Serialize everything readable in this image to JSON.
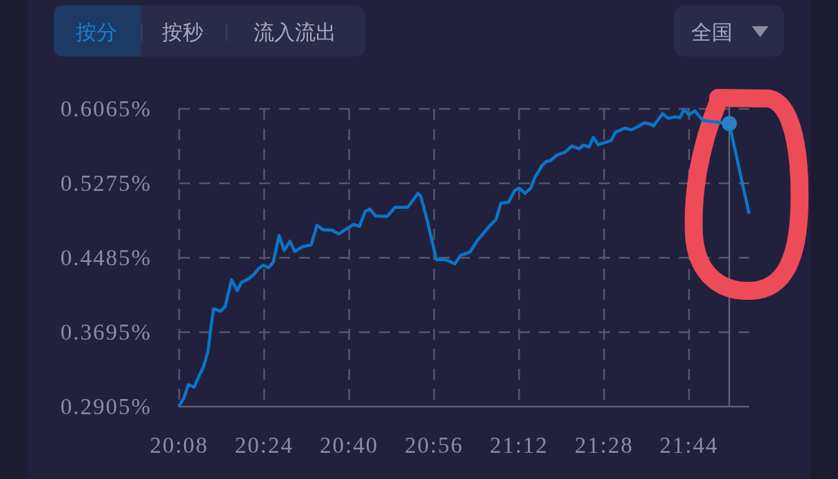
{
  "chart_data": {
    "type": "line",
    "annotations": [
      "按分",
      "按秒",
      "流入流出",
      "全国"
    ],
    "x": [
      20.1333,
      20.1478,
      20.1622,
      20.1803,
      20.1982,
      20.209,
      20.2235,
      20.2343,
      20.2415,
      20.263,
      20.2775,
      20.2977,
      20.3157,
      20.328,
      20.3495,
      20.3675,
      20.382,
      20.3965,
      20.4145,
      20.4288,
      20.4468,
      20.4627,
      20.4808,
      20.4965,
      20.5188,
      20.5478,
      20.5658,
      20.5837,
      20.6127,
      20.6343,
      20.6593,
      20.681,
      20.6992,
      20.7172,
      20.7317,
      20.7495,
      20.7857,
      20.8108,
      20.8505,
      20.883,
      20.8917,
      20.9117,
      20.9405,
      20.9695,
      20.9982,
      21.0162,
      21.0452,
      21.0702,
      21.1063,
      21.128,
      21.1425,
      21.1675,
      21.1857,
      21.2,
      21.2182,
      21.236,
      21.2505,
      21.2722,
      21.2865,
      21.2973,
      21.3188,
      21.3442,
      21.3658,
      21.3873,
      21.4018,
      21.4198,
      21.4328,
      21.4487,
      21.4702,
      21.4883,
      21.5027,
      21.5317,
      21.5533,
      21.5748,
      21.5928,
      21.6108,
      21.6217,
      21.6505,
      21.6685,
      21.6902,
      21.7045,
      21.7175,
      21.7333,
      21.7513,
      21.7767,
      21.8595,
      21.9208
    ],
    "series": [
      {
        "color": "#0b75c8",
        "values": [
          0.2917,
          0.2993,
          0.3139,
          0.3112,
          0.3249,
          0.3322,
          0.349,
          0.3783,
          0.3944,
          0.3917,
          0.3966,
          0.4251,
          0.4136,
          0.4222,
          0.4258,
          0.4307,
          0.4368,
          0.4405,
          0.438,
          0.4441,
          0.4721,
          0.4563,
          0.4661,
          0.4551,
          0.46,
          0.4624,
          0.4831,
          0.4783,
          0.4778,
          0.4739,
          0.4794,
          0.4838,
          0.4819,
          0.4977,
          0.5002,
          0.4929,
          0.4924,
          0.5021,
          0.5021,
          0.5168,
          0.5136,
          0.488,
          0.4465,
          0.4465,
          0.4421,
          0.4509,
          0.4544,
          0.4673,
          0.4819,
          0.4893,
          0.5063,
          0.5075,
          0.5197,
          0.5226,
          0.5168,
          0.5222,
          0.5343,
          0.5465,
          0.5509,
          0.5514,
          0.5575,
          0.5606,
          0.5672,
          0.5641,
          0.568,
          0.5661,
          0.5763,
          0.5685,
          0.5709,
          0.5729,
          0.5819,
          0.586,
          0.5843,
          0.588,
          0.5917,
          0.5904,
          0.5884,
          0.6014,
          0.5965,
          0.5982,
          0.5972,
          0.606,
          0.6002,
          0.6045,
          0.5941,
          0.5909,
          0.4966
        ]
      },
      {
        "type": "scatter",
        "color": "#2a80c6",
        "x": [
          21.8595
        ],
        "values": [
          0.5909
        ]
      }
    ],
    "xlim": [
      20.1333,
      21.9217
    ],
    "xticks": [
      {
        "value": 20.1333,
        "label": "20:08"
      },
      {
        "value": 20.4,
        "label": "20:24"
      },
      {
        "value": 20.6667,
        "label": "20:40"
      },
      {
        "value": 20.9333,
        "label": "20:56"
      },
      {
        "value": 21.2,
        "label": "21:12"
      },
      {
        "value": 21.4667,
        "label": "21:28"
      },
      {
        "value": 21.7333,
        "label": "21:44"
      }
    ],
    "ylim": [
      0.2905,
      0.6065
    ],
    "yticks": [
      {
        "value": 0.2905,
        "label": "0.2905%"
      },
      {
        "value": 0.3695,
        "label": "0.3695%"
      },
      {
        "value": 0.4485,
        "label": "0.4485%"
      },
      {
        "value": 0.5275,
        "label": "0.5275%"
      },
      {
        "value": 0.6065,
        "label": "0.6065%"
      }
    ],
    "grid": true,
    "line_style": "solid",
    "ref_lines": [
      {
        "axis": "x",
        "value": 21.8595,
        "color": "#6a6c80"
      }
    ]
  }
}
